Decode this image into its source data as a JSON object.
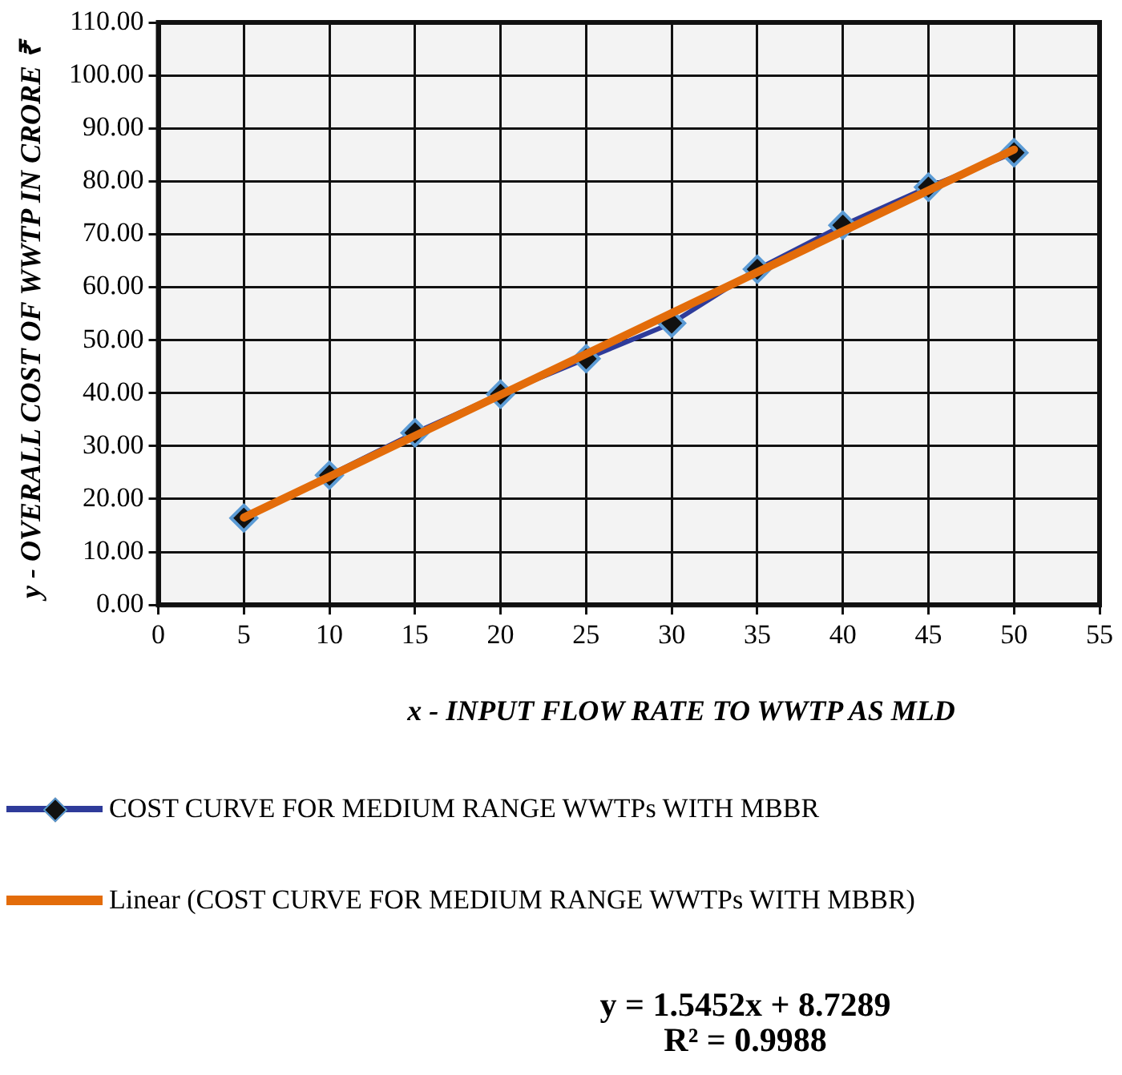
{
  "chart_data": {
    "type": "line",
    "xlabel": "x - INPUT FLOW RATE TO WWTP AS MLD",
    "ylabel": "y - OVERALL COST OF WWTP IN CRORE ₹",
    "x": [
      5,
      10,
      15,
      20,
      25,
      30,
      35,
      40,
      45,
      50
    ],
    "series": [
      {
        "name": "COST CURVE FOR MEDIUM RANGE WWTPs WITH MBBR",
        "color": "#2e3b9a",
        "marker": "diamond",
        "values": [
          16.4,
          24.5,
          32.5,
          39.8,
          46.5,
          53.2,
          63.4,
          71.7,
          78.9,
          85.4
        ]
      },
      {
        "name": "Linear (COST CURVE FOR MEDIUM RANGE WWTPs WITH MBBR)",
        "type": "line",
        "color": "#e36c0a",
        "marker": "none",
        "x": [
          5,
          50
        ],
        "values": [
          16.5,
          86.0
        ]
      }
    ],
    "xlim": [
      0,
      55
    ],
    "xticks": [
      0,
      5,
      10,
      15,
      20,
      25,
      30,
      35,
      40,
      45,
      50,
      55
    ],
    "ylim": [
      0,
      110
    ],
    "yticks": [
      {
        "value": 0,
        "label": "0.00"
      },
      {
        "value": 10,
        "label": "10.00"
      },
      {
        "value": 20,
        "label": "20.00"
      },
      {
        "value": 30,
        "label": "30.00"
      },
      {
        "value": 40,
        "label": "40.00"
      },
      {
        "value": 50,
        "label": "50.00"
      },
      {
        "value": 60,
        "label": "60.00"
      },
      {
        "value": 70,
        "label": "70.00"
      },
      {
        "value": 80,
        "label": "80.00"
      },
      {
        "value": 90,
        "label": "90.00"
      },
      {
        "value": 100,
        "label": "100.00"
      },
      {
        "value": 110,
        "label": "110.00"
      }
    ],
    "grid": true,
    "legend": "bottom",
    "line_style": "solid",
    "annotations": [
      "y = 1.5452x + 8.7289",
      "R² = 0.9988"
    ]
  }
}
